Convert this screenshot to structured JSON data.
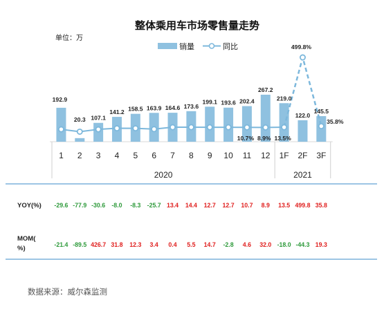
{
  "header": {
    "title": "整体乘用车市场零售量走势",
    "unit": "单位：万",
    "source": "数据来源：威尔森监测"
  },
  "legend": {
    "bar_label": "销量",
    "line_label": "同比"
  },
  "colors": {
    "bar": "#8fc1e0",
    "line": "#7db8dc",
    "line_dash": "#7db8dc",
    "positive": "#e0201f",
    "negative": "#2e9a3b",
    "separator": "#9cc5e4"
  },
  "chart_data": {
    "type": "bar",
    "title": "整体乘用车市场零售量走势",
    "unit": "万",
    "categories": [
      "1",
      "2",
      "3",
      "4",
      "5",
      "6",
      "7",
      "8",
      "9",
      "10",
      "11",
      "12",
      "1F",
      "2F",
      "3F"
    ],
    "groups": [
      "2020",
      "2021"
    ],
    "series": [
      {
        "name": "销量",
        "type": "bar",
        "values": [
          192.9,
          20.3,
          107.1,
          141.2,
          158.5,
          163.9,
          164.6,
          173.6,
          199.1,
          193.6,
          202.4,
          267.2,
          219.0,
          122.0,
          145.5
        ],
        "labels": [
          "192.9",
          "20.3",
          "107.1",
          "141.2",
          "158.5",
          "163.9",
          "164.6",
          "173.6",
          "199.1",
          "193.6",
          "202.4",
          "267.2",
          "219.0",
          "122.0",
          "145.5"
        ]
      },
      {
        "name": "同比",
        "type": "line",
        "values": [
          -29.6,
          -77.9,
          -30.6,
          -8.0,
          -8.3,
          -25.7,
          13.4,
          14.4,
          12.7,
          12.7,
          10.7,
          8.9,
          13.5,
          499.8,
          35.8
        ],
        "labels": [
          "",
          "",
          "",
          "",
          "",
          "",
          "",
          "",
          "",
          "",
          "10.7%",
          "8.9%",
          "13.5%",
          "499.8%",
          "35.8%"
        ]
      }
    ],
    "table": {
      "rows": [
        {
          "label": "YOY(%)",
          "values": [
            "-29.6",
            "-77.9",
            "-30.6",
            "-8.0",
            "-8.3",
            "-25.7",
            "13.4",
            "14.4",
            "12.7",
            "12.7",
            "10.7",
            "8.9",
            "13.5",
            "499.8",
            "35.8"
          ]
        },
        {
          "label_lines": [
            "MOM(",
            "%)"
          ],
          "values": [
            "-21.4",
            "-89.5",
            "426.7",
            "31.8",
            "12.3",
            "3.4",
            "0.4",
            "5.5",
            "14.7",
            "-2.8",
            "4.6",
            "32.0",
            "-18.0",
            "-44.3",
            "19.3"
          ]
        }
      ]
    }
  }
}
